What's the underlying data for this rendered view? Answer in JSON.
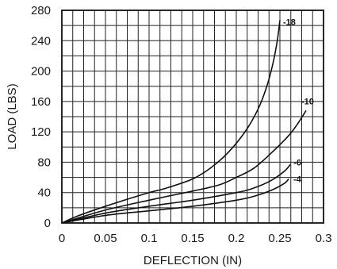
{
  "chart_data": {
    "type": "line",
    "title": "",
    "xlabel": "DEFLECTION (IN)",
    "ylabel": "LOAD (LBS)",
    "xlim": [
      0,
      0.3
    ],
    "ylim": [
      0,
      280
    ],
    "x_ticks": [
      0,
      0.05,
      0.1,
      0.15,
      0.2,
      0.25,
      0.3
    ],
    "x_tick_labels": [
      "0",
      "0.05",
      "0.1",
      "0.15",
      "0.2",
      "0.25",
      "0.3"
    ],
    "y_ticks": [
      0,
      40,
      80,
      120,
      160,
      200,
      240,
      280
    ],
    "y_tick_labels": [
      "0",
      "40",
      "80",
      "120",
      "160",
      "200",
      "240",
      "280"
    ],
    "grid": true,
    "minor_grid_x_step": 0.0125,
    "minor_grid_y_step": 20,
    "legend": "none",
    "colors": {
      "line": "#111111",
      "grid": "#222222",
      "background": "#ffffff"
    },
    "series": [
      {
        "name": "-18",
        "points": [
          [
            0,
            0
          ],
          [
            0.02,
            10
          ],
          [
            0.05,
            22
          ],
          [
            0.08,
            33
          ],
          [
            0.1,
            40
          ],
          [
            0.12,
            46
          ],
          [
            0.15,
            58
          ],
          [
            0.17,
            72
          ],
          [
            0.19,
            92
          ],
          [
            0.21,
            120
          ],
          [
            0.225,
            150
          ],
          [
            0.235,
            180
          ],
          [
            0.242,
            210
          ],
          [
            0.247,
            240
          ],
          [
            0.25,
            267
          ]
        ]
      },
      {
        "name": "-10",
        "points": [
          [
            0,
            0
          ],
          [
            0.05,
            17
          ],
          [
            0.1,
            30
          ],
          [
            0.15,
            42
          ],
          [
            0.18,
            50
          ],
          [
            0.2,
            60
          ],
          [
            0.22,
            72
          ],
          [
            0.24,
            92
          ],
          [
            0.26,
            115
          ],
          [
            0.27,
            130
          ],
          [
            0.28,
            148
          ]
        ]
      },
      {
        "name": "-6",
        "points": [
          [
            0,
            0
          ],
          [
            0.05,
            13
          ],
          [
            0.1,
            22
          ],
          [
            0.15,
            30
          ],
          [
            0.2,
            40
          ],
          [
            0.22,
            46
          ],
          [
            0.24,
            56
          ],
          [
            0.255,
            68
          ],
          [
            0.262,
            77
          ]
        ]
      },
      {
        "name": "-4",
        "points": [
          [
            0,
            0
          ],
          [
            0.05,
            10
          ],
          [
            0.1,
            16
          ],
          [
            0.15,
            22
          ],
          [
            0.2,
            30
          ],
          [
            0.22,
            35
          ],
          [
            0.24,
            43
          ],
          [
            0.255,
            52
          ],
          [
            0.26,
            58
          ]
        ]
      }
    ]
  }
}
